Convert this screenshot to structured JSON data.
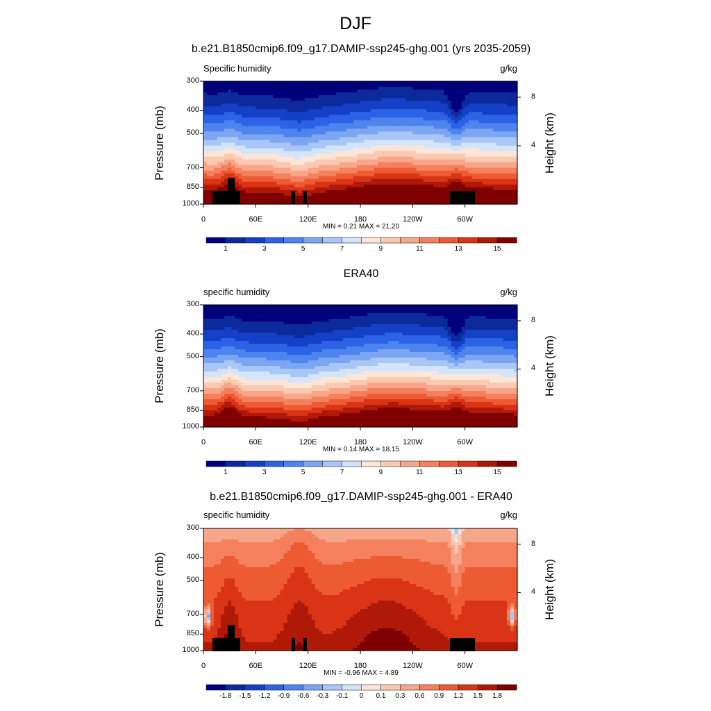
{
  "title": "DJF",
  "chart_data": [
    {
      "type": "heatmap",
      "title": "b.e21.B1850cmip6.f09_g17.DAMIP-ssp245-ghg.001 (yrs 2035-2059)",
      "variable_label": "Specific humidity",
      "units": "g/kg",
      "ylabel": "Pressure (mb)",
      "ylabel_right": "Height (km)",
      "y_ticks": [
        "300",
        "400",
        "500",
        "700",
        "850",
        "1000"
      ],
      "y_right_ticks": [
        "8",
        "4"
      ],
      "x_ticks": [
        "0",
        "60E",
        "120E",
        "180",
        "120W",
        "60W"
      ],
      "min_max": "MIN =   0.21  MAX =  21.20",
      "colorbar_labels": [
        "1",
        "3",
        "5",
        "7",
        "9",
        "11",
        "13",
        "15"
      ],
      "colorbar_levels": 16,
      "ylim": [
        1000,
        300
      ],
      "field": "abs_model"
    },
    {
      "type": "heatmap",
      "title": "ERA40",
      "variable_label": "specific humidity",
      "units": "g/kg",
      "ylabel": "Pressure (mb)",
      "ylabel_right": "Height (km)",
      "y_ticks": [
        "300",
        "400",
        "500",
        "700",
        "850",
        "1000"
      ],
      "y_right_ticks": [
        "8",
        "4"
      ],
      "x_ticks": [
        "0",
        "60E",
        "120E",
        "180",
        "120W",
        "60W"
      ],
      "min_max": "MIN =   0.14  MAX =  18.15",
      "colorbar_labels": [
        "1",
        "3",
        "5",
        "7",
        "9",
        "11",
        "13",
        "15"
      ],
      "colorbar_levels": 16,
      "ylim": [
        1000,
        300
      ],
      "field": "abs_obs"
    },
    {
      "type": "heatmap",
      "title": "b.e21.B1850cmip6.f09_g17.DAMIP-ssp245-ghg.001 - ERA40",
      "variable_label": "specific humidity",
      "units": "g/kg",
      "ylabel": "Pressure (mb)",
      "ylabel_right": "Height (km)",
      "y_ticks": [
        "300",
        "400",
        "500",
        "700",
        "850",
        "1000"
      ],
      "y_right_ticks": [
        "8",
        "4"
      ],
      "x_ticks": [
        "0",
        "60E",
        "120E",
        "180",
        "120W",
        "60W"
      ],
      "min_max": "MIN =  -0.96  MAX =   4.89",
      "colorbar_labels": [
        "-1.8",
        "-1.5",
        "-1.2",
        "-0.9",
        "-0.6",
        "-0.3",
        "-0.1",
        "0",
        "0.1",
        "0.3",
        "0.6",
        "0.9",
        "1.2",
        "1.5",
        "1.8"
      ],
      "colorbar_levels": 16,
      "ylim": [
        1000,
        300
      ],
      "field": "diff"
    }
  ],
  "colors": {
    "ramp": [
      "#00007c",
      "#0d2a9c",
      "#1440c8",
      "#2c62e6",
      "#4e84ee",
      "#7ca6f2",
      "#a8c6f6",
      "#d4e4fa",
      "#fde6d8",
      "#fbc8b0",
      "#f8a68a",
      "#f4805e",
      "#ee5a32",
      "#d93416",
      "#b01808",
      "#7f0000"
    ],
    "topography": "#000000"
  }
}
